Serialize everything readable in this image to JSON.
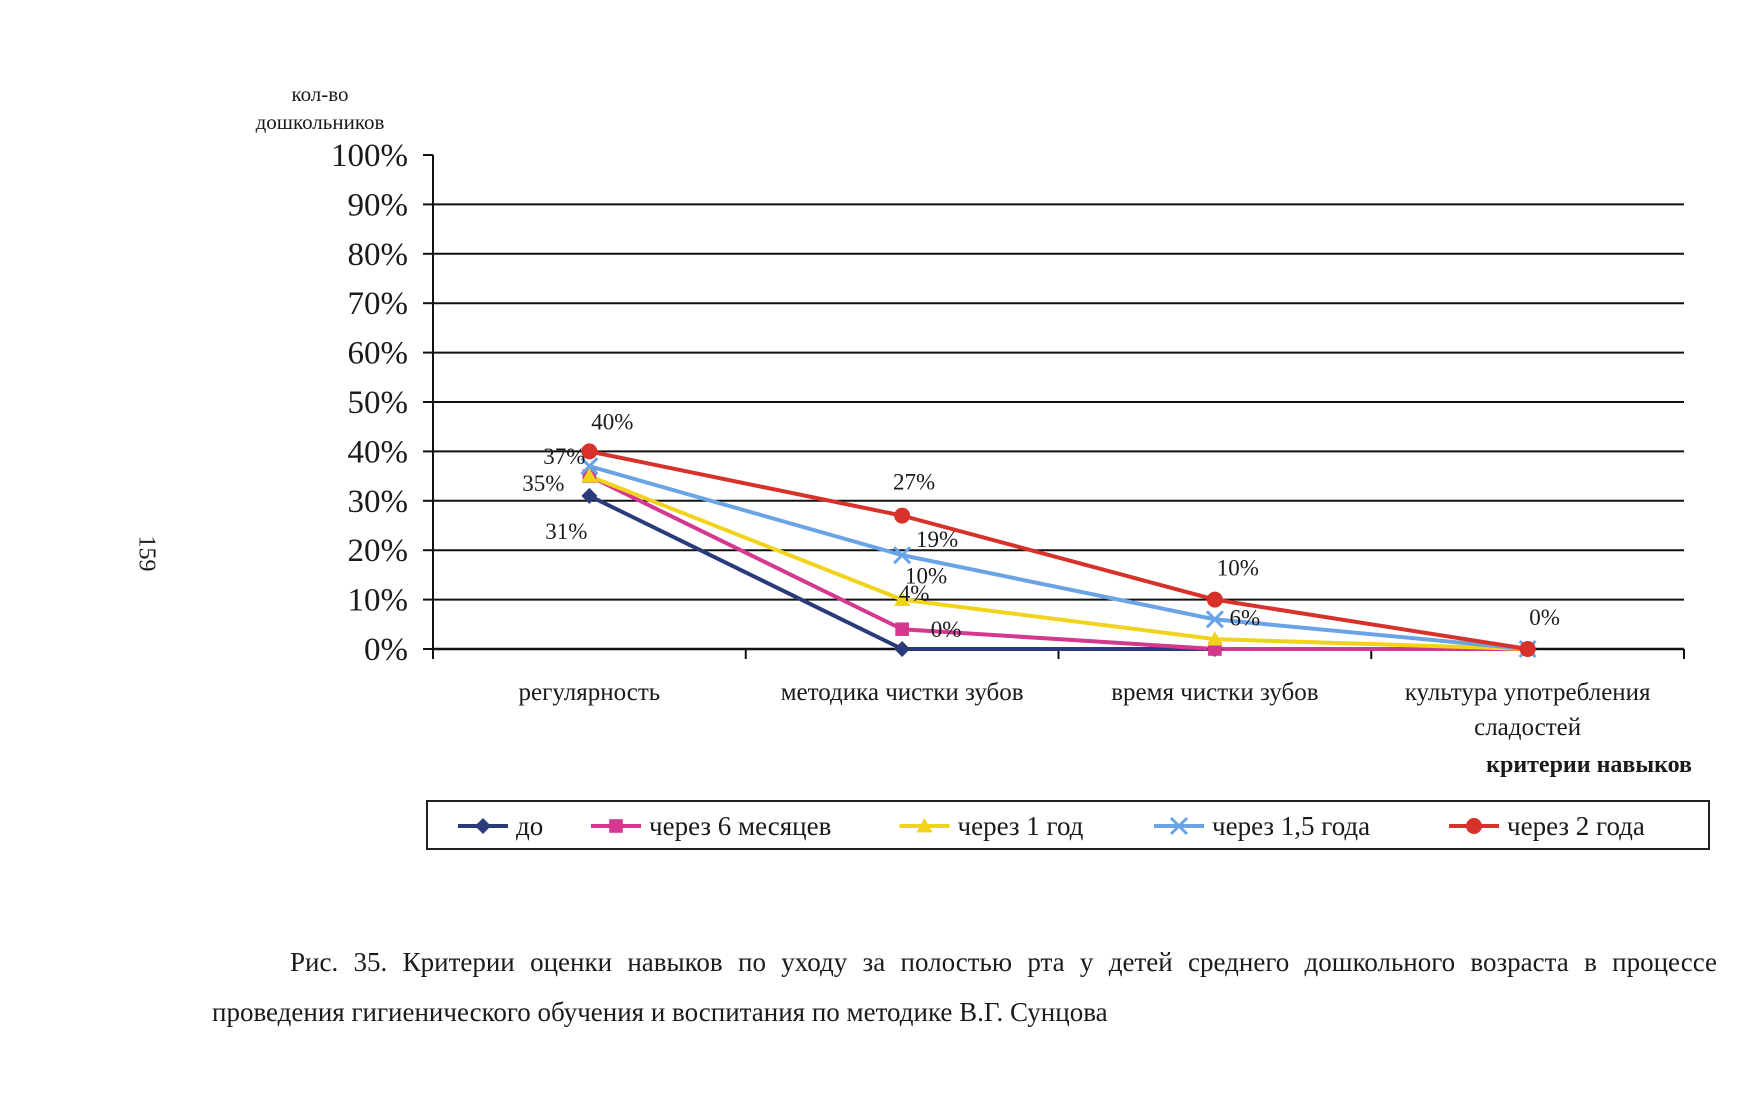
{
  "page_number": "159",
  "caption": "Рис. 35. Критерии оценки навыков по уходу за полостью рта у детей среднего дошкольного возраста в процессе проведения гигиенического обучения и воспитания по методике В.Г. Сунцова",
  "chart_data": {
    "type": "line",
    "ylabel_lines": [
      "кол-во",
      "дошкольников"
    ],
    "xlabel": "критерии навыков",
    "categories": [
      [
        "регулярность"
      ],
      [
        "методика чистки зубов"
      ],
      [
        "время чистки зубов"
      ],
      [
        "культура употребления",
        "сладостей"
      ]
    ],
    "ylim": [
      0,
      100
    ],
    "y_ticks": [
      "0%",
      "10%",
      "20%",
      "30%",
      "40%",
      "50%",
      "60%",
      "70%",
      "80%",
      "90%",
      "100%"
    ],
    "grid": true,
    "legend_position": "bottom",
    "series": [
      {
        "name": "до",
        "values": [
          31,
          0,
          0,
          0
        ],
        "color": "#2b3a7a",
        "marker": "diamond",
        "labels": [
          "31%",
          "0%",
          "",
          ""
        ]
      },
      {
        "name": "через 6 месяцев",
        "values": [
          35,
          4,
          0,
          0
        ],
        "color": "#d4388f",
        "marker": "square",
        "labels": [
          "35%",
          "4%",
          "",
          ""
        ]
      },
      {
        "name": "через 1 год",
        "values": [
          35,
          10,
          2,
          0
        ],
        "color": "#f2d31b",
        "marker": "triangle",
        "labels": [
          "",
          "10%",
          "",
          ""
        ]
      },
      {
        "name": "через 1,5 года",
        "values": [
          37,
          19,
          6,
          0
        ],
        "color": "#6aa4e6",
        "marker": "x",
        "labels": [
          "37%",
          "19%",
          "6%",
          ""
        ]
      },
      {
        "name": "через 2 года",
        "values": [
          40,
          27,
          10,
          0
        ],
        "color": "#d6312b",
        "marker": "circle",
        "labels": [
          "40%",
          "27%",
          "10%",
          "0%"
        ]
      }
    ]
  }
}
